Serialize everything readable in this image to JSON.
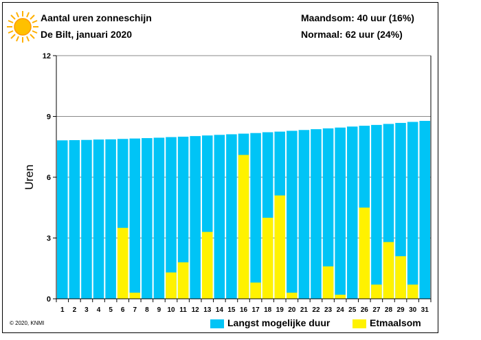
{
  "header": {
    "title": "Aantal uren zonneschijn",
    "subtitle": "De Bilt, januari 2020",
    "month_sum": "Maandsom: 40 uur (16%)",
    "normal": "Normaal: 62 uur (24%)"
  },
  "icons": {
    "sun": "sun-icon"
  },
  "colors": {
    "max_duration": "#00c4f6",
    "daily_sum": "#fff200",
    "grid": "#888888"
  },
  "legend": {
    "max_duration": "Langst mogelijke duur",
    "daily_sum": "Etmaalsom"
  },
  "copyright": "© 2020, KNMI",
  "chart_data": {
    "type": "bar",
    "ylabel": "Uren",
    "ylim": [
      0,
      12
    ],
    "yticks": [
      0,
      3,
      6,
      9,
      12
    ],
    "grid": true,
    "legend_position": "bottom",
    "categories": [
      "1",
      "2",
      "3",
      "4",
      "5",
      "6",
      "7",
      "8",
      "9",
      "10",
      "11",
      "12",
      "13",
      "14",
      "15",
      "16",
      "17",
      "18",
      "19",
      "20",
      "21",
      "22",
      "23",
      "24",
      "25",
      "26",
      "27",
      "28",
      "29",
      "30",
      "31"
    ],
    "series": [
      {
        "name": "Langst mogelijke duur",
        "values": [
          7.82,
          7.83,
          7.84,
          7.86,
          7.87,
          7.89,
          7.91,
          7.93,
          7.95,
          7.98,
          8.0,
          8.03,
          8.06,
          8.09,
          8.12,
          8.15,
          8.18,
          8.22,
          8.25,
          8.29,
          8.33,
          8.37,
          8.41,
          8.45,
          8.5,
          8.54,
          8.58,
          8.63,
          8.68,
          8.73,
          8.78
        ]
      },
      {
        "name": "Etmaalsom",
        "values": [
          0,
          0,
          0,
          0,
          0,
          3.5,
          0.3,
          0,
          0,
          1.3,
          1.8,
          0,
          3.3,
          0,
          0,
          7.1,
          0.8,
          4.0,
          5.1,
          0.3,
          0,
          0,
          1.6,
          0.2,
          0,
          4.5,
          0.7,
          2.8,
          2.1,
          0.7,
          0
        ]
      }
    ]
  }
}
